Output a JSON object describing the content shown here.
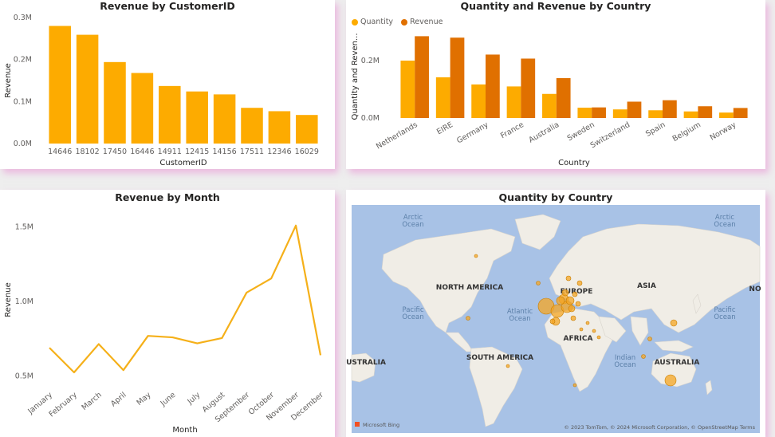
{
  "colors": {
    "quantity": "#fdab00",
    "revenue": "#e07000",
    "line": "#f5b019",
    "water": "#a8c2e6",
    "land": "#f0ede6",
    "bubble": "#f5a623"
  },
  "panels": {
    "customer": {
      "title": "Revenue by CustomerID",
      "xlabel": "CustomerID",
      "ylabel": "Revenue"
    },
    "country": {
      "title": "Quantity and Revenue by Country",
      "xlabel": "Country",
      "ylabel": "Quantity and Reven...",
      "legend": [
        "Quantity",
        "Revenue"
      ]
    },
    "month": {
      "title": "Revenue by Month",
      "xlabel": "Month",
      "ylabel": "Revenue"
    },
    "map": {
      "title": "Quantity by Country",
      "oceans": [
        "Arctic",
        "Ocean",
        "Arctic",
        "Ocean",
        "Pacific",
        "Ocean",
        "Atlantic",
        "Ocean",
        "Indian",
        "Ocean",
        "Pacific",
        "Ocean"
      ],
      "continents": [
        "NORTH AMERICA",
        "EUROPE",
        "ASIA",
        "AFRICA",
        "SOUTH AMERICA",
        "AUSTRALIA",
        "USTRALIA",
        "NO"
      ],
      "bing": "Microsoft Bing",
      "attribution": "© 2023 TomTom, © 2024 Microsoft Corporation, © OpenStreetMap  Terms"
    }
  },
  "chart_data": [
    {
      "type": "bar",
      "title": "Revenue by CustomerID",
      "xlabel": "CustomerID",
      "ylabel": "Revenue",
      "categories": [
        "14646",
        "18102",
        "17450",
        "16446",
        "14911",
        "12415",
        "14156",
        "17511",
        "12346",
        "16029"
      ],
      "values": [
        280000,
        259000,
        194000,
        168000,
        137000,
        124000,
        117000,
        85000,
        77000,
        68000
      ],
      "ylim": [
        0,
        300000
      ],
      "yticks": [
        "0.0M",
        "0.1M",
        "0.2M",
        "0.3M"
      ],
      "grid": false
    },
    {
      "type": "bar",
      "title": "Quantity and Revenue by Country",
      "xlabel": "Country",
      "ylabel": "Quantity and Reven...",
      "legend_position": "top-left",
      "categories": [
        "Netherlands",
        "EIRE",
        "Germany",
        "France",
        "Australia",
        "Sweden",
        "Switzerland",
        "Spain",
        "Belgium",
        "Norway"
      ],
      "series": [
        {
          "name": "Quantity",
          "values": [
            200000,
            142000,
            117000,
            110000,
            84000,
            36000,
            30000,
            27000,
            23000,
            19000
          ]
        },
        {
          "name": "Revenue",
          "values": [
            285000,
            280000,
            221000,
            207000,
            139000,
            37000,
            57000,
            62000,
            41000,
            35000
          ]
        }
      ],
      "ylim": [
        0,
        300000
      ],
      "yticks": [
        "0.0M",
        "0.2M"
      ],
      "grid": false
    },
    {
      "type": "line",
      "title": "Revenue by Month",
      "xlabel": "Month",
      "ylabel": "Revenue",
      "categories": [
        "January",
        "February",
        "March",
        "April",
        "May",
        "June",
        "July",
        "August",
        "September",
        "October",
        "November",
        "December"
      ],
      "values": [
        690000,
        525000,
        715000,
        540000,
        770000,
        760000,
        720000,
        755000,
        1060000,
        1155000,
        1510000,
        640000
      ],
      "ylim": [
        450000,
        1600000
      ],
      "yticks": [
        "0.5M",
        "1.0M",
        "1.5M"
      ],
      "grid": false
    }
  ]
}
